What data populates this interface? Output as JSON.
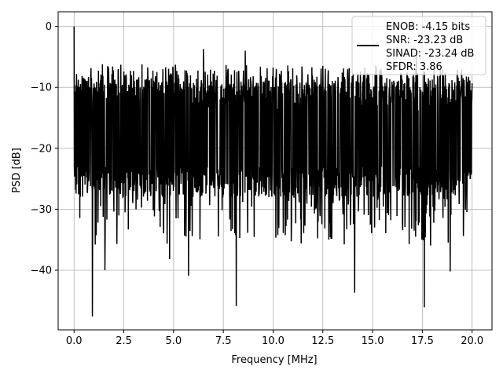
{
  "chart_data": {
    "type": "line",
    "title": "",
    "xlabel": "Frequency [MHz]",
    "ylabel": "PSD [dB]",
    "xlim": [
      -0.8,
      21.0
    ],
    "ylim": [
      -49.8,
      2.4
    ],
    "xticks": [
      0.0,
      2.5,
      5.0,
      7.5,
      10.0,
      12.5,
      15.0,
      17.5,
      20.0
    ],
    "xtick_labels": [
      "0.0",
      "2.5",
      "5.0",
      "7.5",
      "10.0",
      "12.5",
      "15.0",
      "17.5",
      "20.0"
    ],
    "yticks": [
      0,
      -10,
      -20,
      -30,
      -40
    ],
    "ytick_labels": [
      "0",
      "−10",
      "−20",
      "−30",
      "−40"
    ],
    "grid": true,
    "legend_position": "top-right",
    "legend": {
      "lines": [
        "ENOB: -4.15 bits",
        "SNR: -23.23 dB",
        "SINAD: -23.24 dB",
        "SFDR: 3.86"
      ]
    },
    "series": [
      {
        "color": "#000000",
        "x_range": [
          0.0,
          20.0
        ],
        "envelope_note_free": true,
        "peaks": [
          {
            "x": 0.0,
            "y": 0.0
          },
          {
            "x": 6.5,
            "y": -3.7
          },
          {
            "x": 8.6,
            "y": -4.0
          },
          {
            "x": 17.2,
            "y": -4.0
          },
          {
            "x": 12.5,
            "y": -6.5
          },
          {
            "x": 4.6,
            "y": -6.7
          }
        ],
        "troughs": [
          {
            "x": 0.92,
            "y": -47.6
          },
          {
            "x": 8.15,
            "y": -45.9
          },
          {
            "x": 17.6,
            "y": -46.1
          },
          {
            "x": 14.1,
            "y": -43.7
          },
          {
            "x": 5.75,
            "y": -40.9
          },
          {
            "x": 1.55,
            "y": -40.0
          },
          {
            "x": 18.9,
            "y": -40.2
          },
          {
            "x": 4.8,
            "y": -38.2
          }
        ],
        "mean": -17.0,
        "upper_band": -8.0,
        "lower_band": -28.0
      }
    ]
  }
}
